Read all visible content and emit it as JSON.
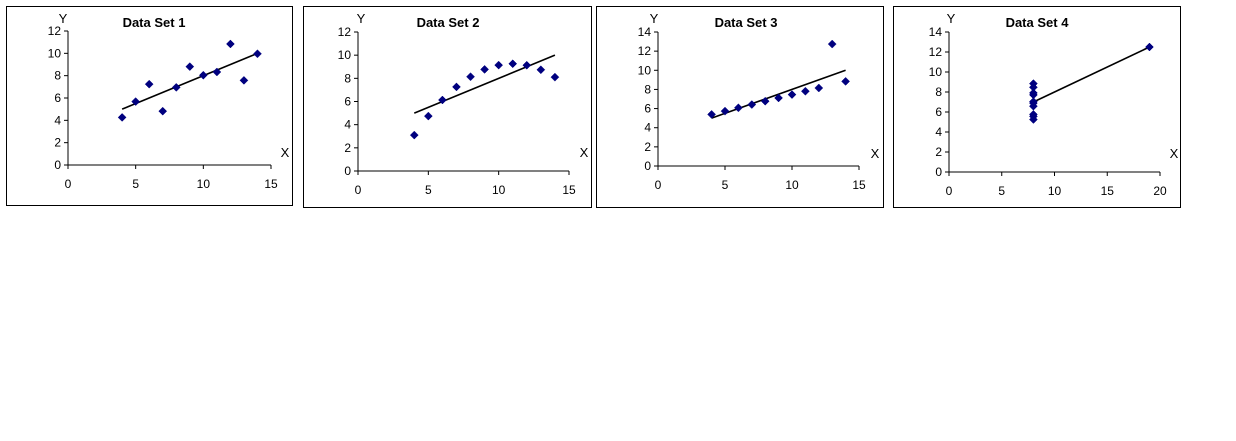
{
  "chart_data": [
    {
      "type": "scatter",
      "title": "Data Set 1",
      "xlabel": "X",
      "ylabel": "Y",
      "xlim": [
        0,
        15
      ],
      "ylim": [
        0,
        12
      ],
      "xticks": [
        0,
        5,
        10,
        15
      ],
      "yticks": [
        0,
        2,
        4,
        6,
        8,
        10,
        12
      ],
      "grid": false,
      "marker_color": "#00007f",
      "trendline": {
        "x": [
          4,
          14
        ],
        "y": [
          5.0,
          10.0
        ]
      },
      "points": {
        "x": [
          4,
          5,
          6,
          7,
          8,
          9,
          10,
          11,
          12,
          13,
          14
        ],
        "y": [
          4.26,
          5.68,
          7.24,
          4.82,
          6.95,
          8.81,
          8.04,
          8.33,
          10.84,
          7.58,
          9.96
        ]
      }
    },
    {
      "type": "scatter",
      "title": "Data Set 2",
      "xlabel": "X",
      "ylabel": "Y",
      "xlim": [
        0,
        15
      ],
      "ylim": [
        0,
        12
      ],
      "xticks": [
        0,
        5,
        10,
        15
      ],
      "yticks": [
        0,
        2,
        4,
        6,
        8,
        10,
        12
      ],
      "grid": false,
      "marker_color": "#00007f",
      "trendline": {
        "x": [
          4,
          14
        ],
        "y": [
          5.0,
          10.0
        ]
      },
      "points": {
        "x": [
          4,
          5,
          6,
          7,
          8,
          9,
          10,
          11,
          12,
          13,
          14
        ],
        "y": [
          3.1,
          4.74,
          6.13,
          7.26,
          8.14,
          8.77,
          9.14,
          9.26,
          9.13,
          8.74,
          8.1
        ]
      }
    },
    {
      "type": "scatter",
      "title": "Data Set 3",
      "xlabel": "X",
      "ylabel": "Y",
      "xlim": [
        0,
        15
      ],
      "ylim": [
        0,
        14
      ],
      "xticks": [
        0,
        5,
        10,
        15
      ],
      "yticks": [
        0,
        2,
        4,
        6,
        8,
        10,
        12,
        14
      ],
      "grid": false,
      "marker_color": "#00007f",
      "trendline": {
        "x": [
          4,
          14
        ],
        "y": [
          5.0,
          10.0
        ]
      },
      "points": {
        "x": [
          4,
          5,
          6,
          7,
          8,
          9,
          10,
          11,
          12,
          13,
          14
        ],
        "y": [
          5.39,
          5.73,
          6.08,
          6.42,
          6.77,
          7.11,
          7.46,
          7.81,
          8.15,
          12.74,
          8.84
        ]
      }
    },
    {
      "type": "scatter",
      "title": "Data Set 4",
      "xlabel": "X",
      "ylabel": "Y",
      "xlim": [
        0,
        20
      ],
      "ylim": [
        0,
        14
      ],
      "xticks": [
        0,
        5,
        10,
        15,
        20
      ],
      "yticks": [
        0,
        2,
        4,
        6,
        8,
        10,
        12,
        14
      ],
      "grid": false,
      "marker_color": "#00007f",
      "trendline": {
        "x": [
          8,
          19
        ],
        "y": [
          7.0,
          12.5
        ]
      },
      "points": {
        "x": [
          8,
          8,
          8,
          8,
          8,
          8,
          8,
          8,
          8,
          8,
          19
        ],
        "y": [
          6.58,
          5.76,
          7.71,
          8.84,
          8.47,
          7.04,
          5.25,
          5.56,
          7.91,
          6.89,
          12.5
        ]
      }
    }
  ]
}
